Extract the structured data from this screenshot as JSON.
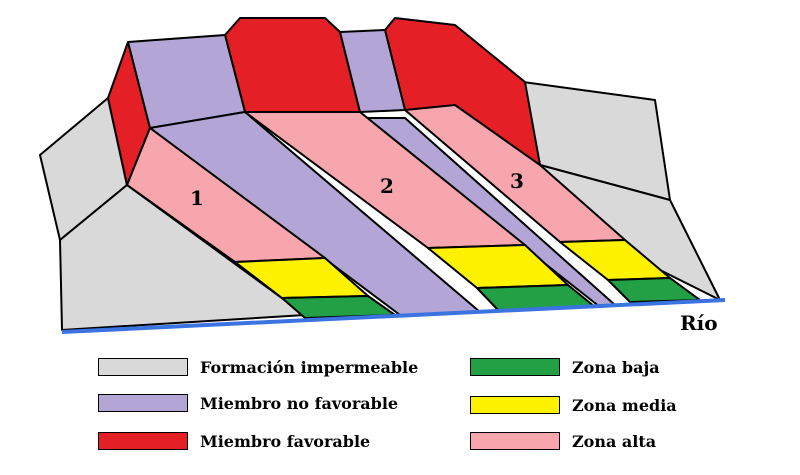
{
  "colors": {
    "impermeable": "#d9d9d9",
    "no_favorable": "#b3a6d6",
    "favorable": "#e41f26",
    "zona_baja": "#23a046",
    "zona_media": "#fff200",
    "zona_alta": "#f7a6ae",
    "river": "#3b74e0"
  },
  "diagram": {
    "zone_numbers": [
      "1",
      "2",
      "3"
    ],
    "river_label": "Río"
  },
  "legend": [
    {
      "id": "impermeable",
      "label": "Formación impermeable",
      "color": "#d9d9d9"
    },
    {
      "id": "no-favorable",
      "label": "Miembro no favorable",
      "color": "#b3a6d6"
    },
    {
      "id": "favorable",
      "label": "Miembro favorable",
      "color": "#e41f26"
    },
    {
      "id": "zona-baja",
      "label": "Zona baja",
      "color": "#23a046"
    },
    {
      "id": "zona-media",
      "label": "Zona media",
      "color": "#fff200"
    },
    {
      "id": "zona-alta",
      "label": "Zona alta",
      "color": "#f7a6ae"
    }
  ]
}
